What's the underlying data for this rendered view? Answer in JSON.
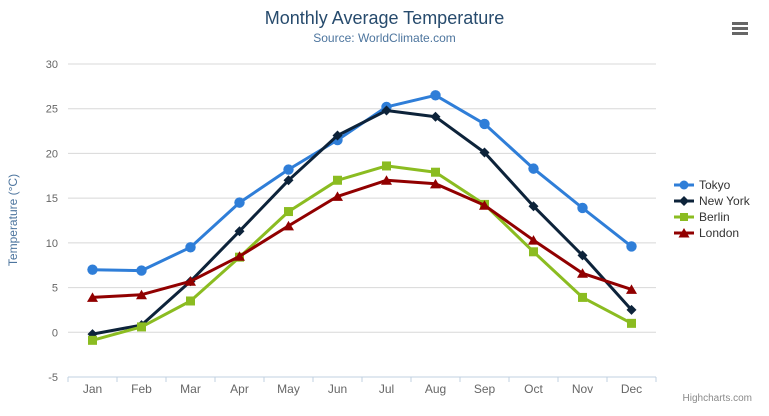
{
  "chart_data": {
    "type": "line",
    "title": "Monthly Average Temperature",
    "subtitle": "Source: WorldClimate.com",
    "xlabel": "",
    "ylabel": "Temperature (°C)",
    "categories": [
      "Jan",
      "Feb",
      "Mar",
      "Apr",
      "May",
      "Jun",
      "Jul",
      "Aug",
      "Sep",
      "Oct",
      "Nov",
      "Dec"
    ],
    "y_ticks": [
      -5,
      0,
      5,
      10,
      15,
      20,
      25,
      30
    ],
    "ylim": [
      -5,
      30
    ],
    "grid": true,
    "legend_position": "right",
    "series": [
      {
        "name": "Tokyo",
        "color": "#2f7ed8",
        "marker": "circle",
        "values": [
          7.0,
          6.9,
          9.5,
          14.5,
          18.2,
          21.5,
          25.2,
          26.5,
          23.3,
          18.3,
          13.9,
          9.6
        ]
      },
      {
        "name": "New York",
        "color": "#0d233a",
        "marker": "diamond",
        "values": [
          -0.2,
          0.8,
          5.7,
          11.3,
          17.0,
          22.0,
          24.8,
          24.1,
          20.1,
          14.1,
          8.6,
          2.5
        ]
      },
      {
        "name": "Berlin",
        "color": "#8bbc21",
        "marker": "square",
        "values": [
          -0.9,
          0.6,
          3.5,
          8.4,
          13.5,
          17.0,
          18.6,
          17.9,
          14.3,
          9.0,
          3.9,
          1.0
        ]
      },
      {
        "name": "London",
        "color": "#910000",
        "marker": "triangle",
        "values": [
          3.9,
          4.2,
          5.7,
          8.5,
          11.9,
          15.2,
          17.0,
          16.6,
          14.2,
          10.3,
          6.6,
          4.8
        ]
      }
    ]
  },
  "credit": "Highcharts.com",
  "icons": {
    "export_menu": "hamburger-menu-icon"
  },
  "style_colors": {
    "title": "#274b6d",
    "subtitle": "#4d759e",
    "axis_title": "#4d759e",
    "axis_labels": "#666666",
    "gridline": "#d8d8d8",
    "axis_line": "#c0d0e0",
    "legend_text": "#333333",
    "credit_text": "#8a8a8a"
  }
}
